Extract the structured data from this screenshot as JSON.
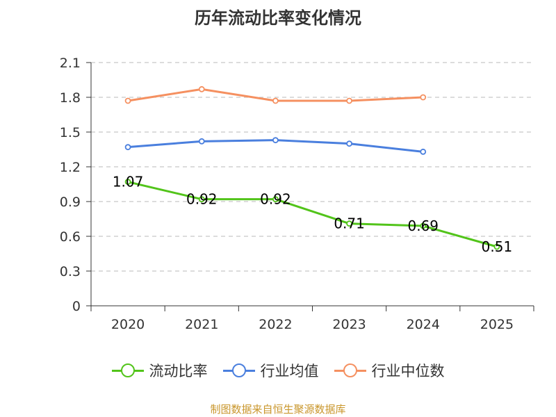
{
  "chart_data": {
    "type": "line",
    "title": "历年流动比率变化情况",
    "categories": [
      "2020",
      "2021",
      "2022",
      "2023",
      "2024",
      "2025"
    ],
    "ylim": [
      0,
      2.1
    ],
    "yticks": [
      "0",
      "0.3",
      "0.6",
      "0.9",
      "1.2",
      "1.5",
      "1.8",
      "2.1"
    ],
    "grid": true,
    "legend_position": "bottom",
    "series": [
      {
        "name": "流动比率",
        "color": "#52c41a",
        "values": [
          1.07,
          0.92,
          0.92,
          0.71,
          0.69,
          0.51
        ],
        "labels": [
          "1.07",
          "0.92",
          "0.92",
          "0.71",
          "0.69",
          "0.51"
        ]
      },
      {
        "name": "行业均值",
        "color": "#4a7fde",
        "values": [
          1.37,
          1.42,
          1.43,
          1.4,
          1.33,
          null
        ]
      },
      {
        "name": "行业中位数",
        "color": "#f59060",
        "values": [
          1.77,
          1.87,
          1.77,
          1.77,
          1.8,
          null
        ]
      }
    ]
  },
  "source": "制图数据来自恒生聚源数据库"
}
